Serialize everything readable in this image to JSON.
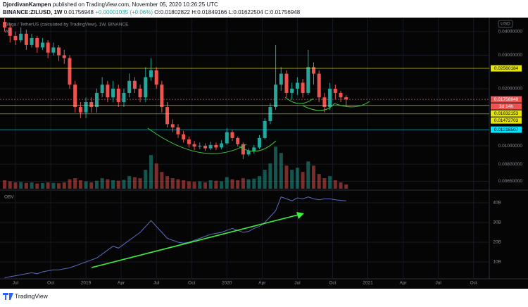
{
  "header": {
    "author": "DjordivanKampen",
    "published": "published on TradingView.com, November 05, 2020 10:26:25 UTC",
    "symbol": "BINANCE:ZILUSD, 1W",
    "change": "+0.00001035 (+0.06%)",
    "open_label": "O:",
    "high_label": "H:",
    "low_label": "L:",
    "close_label": "C:"
  },
  "footer": {
    "brand": "TradingView"
  },
  "chart_data": [
    {
      "type": "candlestick",
      "title": "Zilliqa / TetherUS (calculated by TradingView), 1W, BINANCE",
      "volume_title": "Vol",
      "currency": "USD",
      "countdown": "3d 14h",
      "x": [
        -4,
        -2,
        0,
        2,
        4,
        6,
        8,
        10,
        12,
        14,
        16,
        18,
        20,
        22,
        24,
        26,
        28,
        30,
        32,
        34,
        36,
        38,
        40,
        42,
        44,
        46,
        48,
        50,
        52,
        54,
        56,
        58,
        60,
        62,
        64,
        66,
        68,
        70,
        72,
        74,
        76,
        78,
        80,
        82,
        84,
        86,
        88,
        90,
        92,
        94,
        96,
        98,
        100,
        102,
        104,
        106,
        108,
        110,
        112,
        114,
        116,
        118,
        120,
        122
      ],
      "open": [
        0.045,
        0.042,
        0.038,
        0.036,
        0.039,
        0.034,
        0.037,
        0.033,
        0.035,
        0.031,
        0.033,
        0.03,
        0.029,
        0.021,
        0.016,
        0.015,
        0.017,
        0.016,
        0.019,
        0.021,
        0.018,
        0.02,
        0.017,
        0.019,
        0.022,
        0.02,
        0.018,
        0.023,
        0.025,
        0.021,
        0.016,
        0.013,
        0.0125,
        0.0115,
        0.0108,
        0.0102,
        0.0099,
        0.01,
        0.0097,
        0.0101,
        0.0098,
        0.0103,
        0.0118,
        0.011,
        0.0102,
        0.009,
        0.0094,
        0.0098,
        0.011,
        0.0135,
        0.016,
        0.021,
        0.024,
        0.019,
        0.02,
        0.0215,
        0.019,
        0.026,
        0.024,
        0.018,
        0.016,
        0.02,
        0.019,
        0.01802822
      ],
      "high": [
        0.047,
        0.044,
        0.04,
        0.042,
        0.041,
        0.039,
        0.038,
        0.037,
        0.036,
        0.035,
        0.034,
        0.032,
        0.03,
        0.022,
        0.017,
        0.018,
        0.018,
        0.02,
        0.023,
        0.022,
        0.022,
        0.021,
        0.02,
        0.024,
        0.023,
        0.021,
        0.026,
        0.029,
        0.026,
        0.022,
        0.017,
        0.0138,
        0.013,
        0.012,
        0.0112,
        0.0106,
        0.0104,
        0.0103,
        0.0105,
        0.0104,
        0.0107,
        0.0124,
        0.0121,
        0.0112,
        0.0104,
        0.0097,
        0.0101,
        0.0114,
        0.014,
        0.0168,
        0.034,
        0.026,
        0.025,
        0.0215,
        0.023,
        0.0225,
        0.032,
        0.0275,
        0.025,
        0.019,
        0.0215,
        0.021,
        0.0195,
        0.01849166
      ],
      "low": [
        0.04,
        0.035,
        0.034,
        0.035,
        0.032,
        0.033,
        0.031,
        0.032,
        0.029,
        0.03,
        0.028,
        0.027,
        0.02,
        0.015,
        0.014,
        0.014,
        0.015,
        0.015,
        0.018,
        0.017,
        0.017,
        0.016,
        0.016,
        0.018,
        0.019,
        0.017,
        0.017,
        0.022,
        0.02,
        0.015,
        0.0125,
        0.0118,
        0.011,
        0.0104,
        0.0098,
        0.0095,
        0.0096,
        0.0094,
        0.0095,
        0.0095,
        0.0096,
        0.0101,
        0.0106,
        0.0099,
        0.0085,
        0.0088,
        0.0091,
        0.0096,
        0.0108,
        0.013,
        0.0155,
        0.0195,
        0.018,
        0.0175,
        0.0185,
        0.018,
        0.0185,
        0.021,
        0.017,
        0.015,
        0.0155,
        0.0175,
        0.017,
        0.01622504
      ],
      "close": [
        0.042,
        0.038,
        0.036,
        0.039,
        0.034,
        0.037,
        0.033,
        0.035,
        0.031,
        0.033,
        0.03,
        0.029,
        0.021,
        0.016,
        0.015,
        0.017,
        0.016,
        0.019,
        0.021,
        0.018,
        0.02,
        0.017,
        0.019,
        0.022,
        0.02,
        0.018,
        0.023,
        0.025,
        0.021,
        0.016,
        0.013,
        0.0125,
        0.0115,
        0.0108,
        0.0102,
        0.0099,
        0.01,
        0.0097,
        0.0101,
        0.0098,
        0.0103,
        0.0118,
        0.011,
        0.0102,
        0.009,
        0.0094,
        0.0098,
        0.011,
        0.0135,
        0.016,
        0.021,
        0.024,
        0.019,
        0.02,
        0.0215,
        0.019,
        0.026,
        0.024,
        0.018,
        0.016,
        0.02,
        0.019,
        0.018,
        0.01756948
      ],
      "volume": [
        40,
        35,
        30,
        32,
        28,
        30,
        25,
        27,
        30,
        28,
        26,
        30,
        45,
        50,
        40,
        35,
        30,
        38,
        50,
        45,
        40,
        38,
        42,
        60,
        55,
        50,
        90,
        160,
        120,
        80,
        60,
        50,
        45,
        40,
        35,
        33,
        35,
        30,
        40,
        38,
        35,
        55,
        45,
        40,
        50,
        45,
        48,
        60,
        90,
        120,
        200,
        170,
        110,
        90,
        100,
        80,
        130,
        110,
        70,
        50,
        60,
        40,
        30,
        20
      ],
      "volume_ylim": [
        0,
        220
      ],
      "up_color": "#26a69a",
      "down_color": "#ef5350",
      "levels": [
        {
          "value": 0.02560184,
          "color": "#e6e600",
          "text_color": "#000000"
        },
        {
          "value": 0.01632153,
          "color": "#e6e600",
          "text_color": "#000000"
        },
        {
          "value": 0.01472703,
          "color": "#e6e600",
          "text_color": "#000000"
        },
        {
          "value": 0.01216507,
          "color": "#00e5ff",
          "text_color": "#000000"
        }
      ],
      "log_scale": true,
      "grid": true,
      "xlim": [
        -5.7,
        174.8
      ],
      "xticks": [
        {
          "value": 0,
          "label": "Jul"
        },
        {
          "value": 13,
          "label": "Oct"
        },
        {
          "value": 26,
          "label": "2019"
        },
        {
          "value": 39,
          "label": "Apr"
        },
        {
          "value": 52,
          "label": "Jul"
        },
        {
          "value": 65,
          "label": "Oct"
        },
        {
          "value": 78,
          "label": "2020"
        },
        {
          "value": 91,
          "label": "Apr"
        },
        {
          "value": 104,
          "label": "Jul"
        },
        {
          "value": 117,
          "label": "Oct"
        },
        {
          "value": 130,
          "label": "2021"
        },
        {
          "value": 143,
          "label": "Apr"
        },
        {
          "value": 156,
          "label": "Jul"
        },
        {
          "value": 169,
          "label": "Oct"
        }
      ],
      "ylim": [
        0.00594,
        0.0474
      ],
      "yticks": [
        {
          "value": 0.04,
          "label": "0.04000000"
        },
        {
          "value": 0.03,
          "label": "0.03000000"
        },
        {
          "value": 0.02,
          "label": "0.02000000"
        },
        {
          "value": 0.01,
          "label": "0.01000000"
        },
        {
          "value": 0.008,
          "label": "0.00800000"
        },
        {
          "value": 0.0065,
          "label": "0.00650000"
        }
      ]
    },
    {
      "type": "line",
      "title": "OBV",
      "color": "#5b6bbf",
      "values": [
        2,
        2.5,
        3,
        3.5,
        4,
        4.5,
        4,
        5,
        5.5,
        6,
        6,
        6.5,
        7,
        8,
        9,
        10,
        11,
        12,
        14,
        16,
        18,
        17,
        19,
        21,
        23,
        25,
        28,
        31,
        28,
        25,
        22,
        21,
        20,
        19.5,
        20,
        21,
        22,
        23,
        24,
        24.5,
        25,
        26,
        27,
        26,
        25,
        25.5,
        27,
        28,
        30,
        33,
        36,
        43,
        42,
        41,
        42.5,
        42,
        43,
        42,
        41.5,
        42,
        42,
        41.5,
        41.2,
        41
      ],
      "ylim": [
        1.8,
        45.7
      ],
      "yticks": [
        {
          "value": 40,
          "label": "40B"
        },
        {
          "value": 30,
          "label": "30B"
        },
        {
          "value": 20,
          "label": "20B"
        },
        {
          "value": 10,
          "label": "10B"
        }
      ]
    }
  ]
}
